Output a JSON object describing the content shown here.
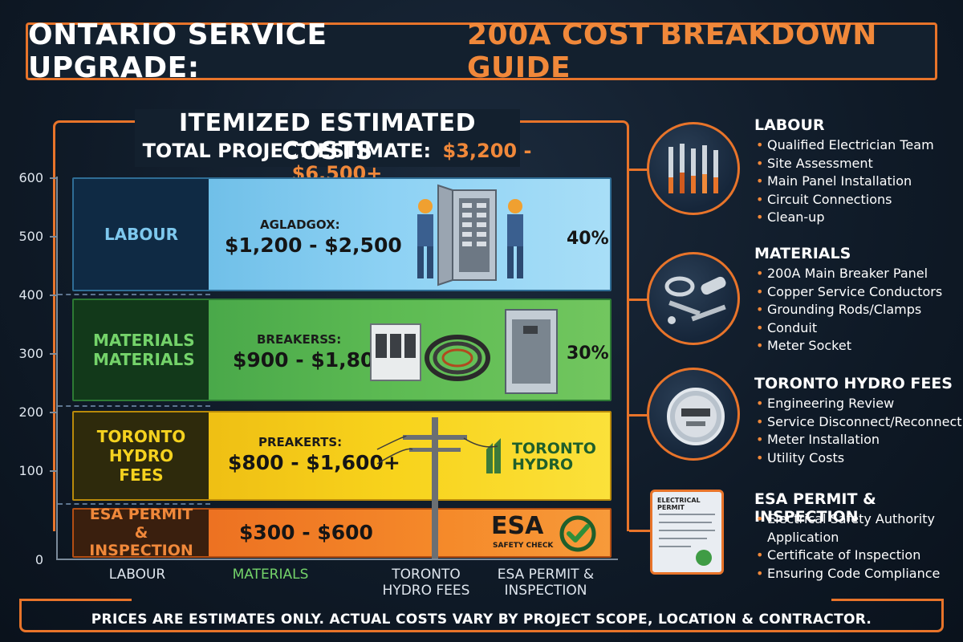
{
  "title": {
    "part1": "ONTARIO SERVICE UPGRADE:",
    "part2": "200A COST BREAKDOWN GUIDE"
  },
  "header": {
    "section_title": "ITEMIZED ESTIMATED COSTS",
    "total_label": "TOTAL PROJECT ESTIMATE:",
    "total_value": "$3,200 - $6,500+"
  },
  "y_axis_ticks": [
    "600",
    "500",
    "400",
    "300",
    "200",
    "100",
    "0"
  ],
  "bands": [
    {
      "side_label": "LABOUR",
      "category_text": "AGLADGOX:",
      "range": "$1,200 - $2,500",
      "percent": "40%"
    },
    {
      "side_label": "MATERIALS MATERIALS",
      "category_text": "BREAKERSS:",
      "range": "$900 - $1,800",
      "percent": "30%"
    },
    {
      "side_label": "TORONTO HYDRO FEES",
      "category_text": "PREAKERTS:",
      "range": "$800 - $1,600+",
      "logo_text": "TORONTO HYDRO"
    },
    {
      "side_label": "ESA PERMIT & INSPECTION",
      "range": "$300 - $600",
      "logo_text": "ESA",
      "logo_sub": "SAFETY CHECK"
    }
  ],
  "x_labels": [
    "LABOUR",
    "MATERIALS",
    "TORONTO HYDRO FEES",
    "ESA PERMIT & INSPECTION"
  ],
  "colors": {
    "accent": "#e8742a",
    "labour": "#7ec8ee",
    "materials": "#74d36a",
    "hydro": "#f5d21f",
    "esa": "#f0883a"
  },
  "details": [
    {
      "heading": "LABOUR",
      "items": [
        "Qualified Electrician Team",
        "Site Assessment",
        "Main Panel Installation",
        "Circuit Connections",
        "Clean-up"
      ]
    },
    {
      "heading": "MATERIALS",
      "items": [
        "200A Main Breaker Panel",
        "Copper Service Conductors",
        "Grounding Rods/Clamps",
        "Conduit",
        "Meter Socket"
      ]
    },
    {
      "heading": "TORONTO HYDRO FEES",
      "items": [
        "Engineering Review",
        "Service Disconnect/Reconnect",
        "Meter Installation",
        "Utility Costs"
      ]
    },
    {
      "heading": "ESA PERMIT & INSPECTION",
      "items": [
        "Electrical Safety Authority Application",
        "Certificate of Inspection",
        "Ensuring Code Compliance"
      ]
    }
  ],
  "icons": [
    "tools-icon",
    "materials-icon",
    "meter-icon",
    "permit-document-icon"
  ],
  "doc_text": "ELECTRICAL PERMIT",
  "footer": "PRICES ARE ESTIMATES ONLY. ACTUAL COSTS VARY BY PROJECT SCOPE, LOCATION & CONTRACTOR."
}
